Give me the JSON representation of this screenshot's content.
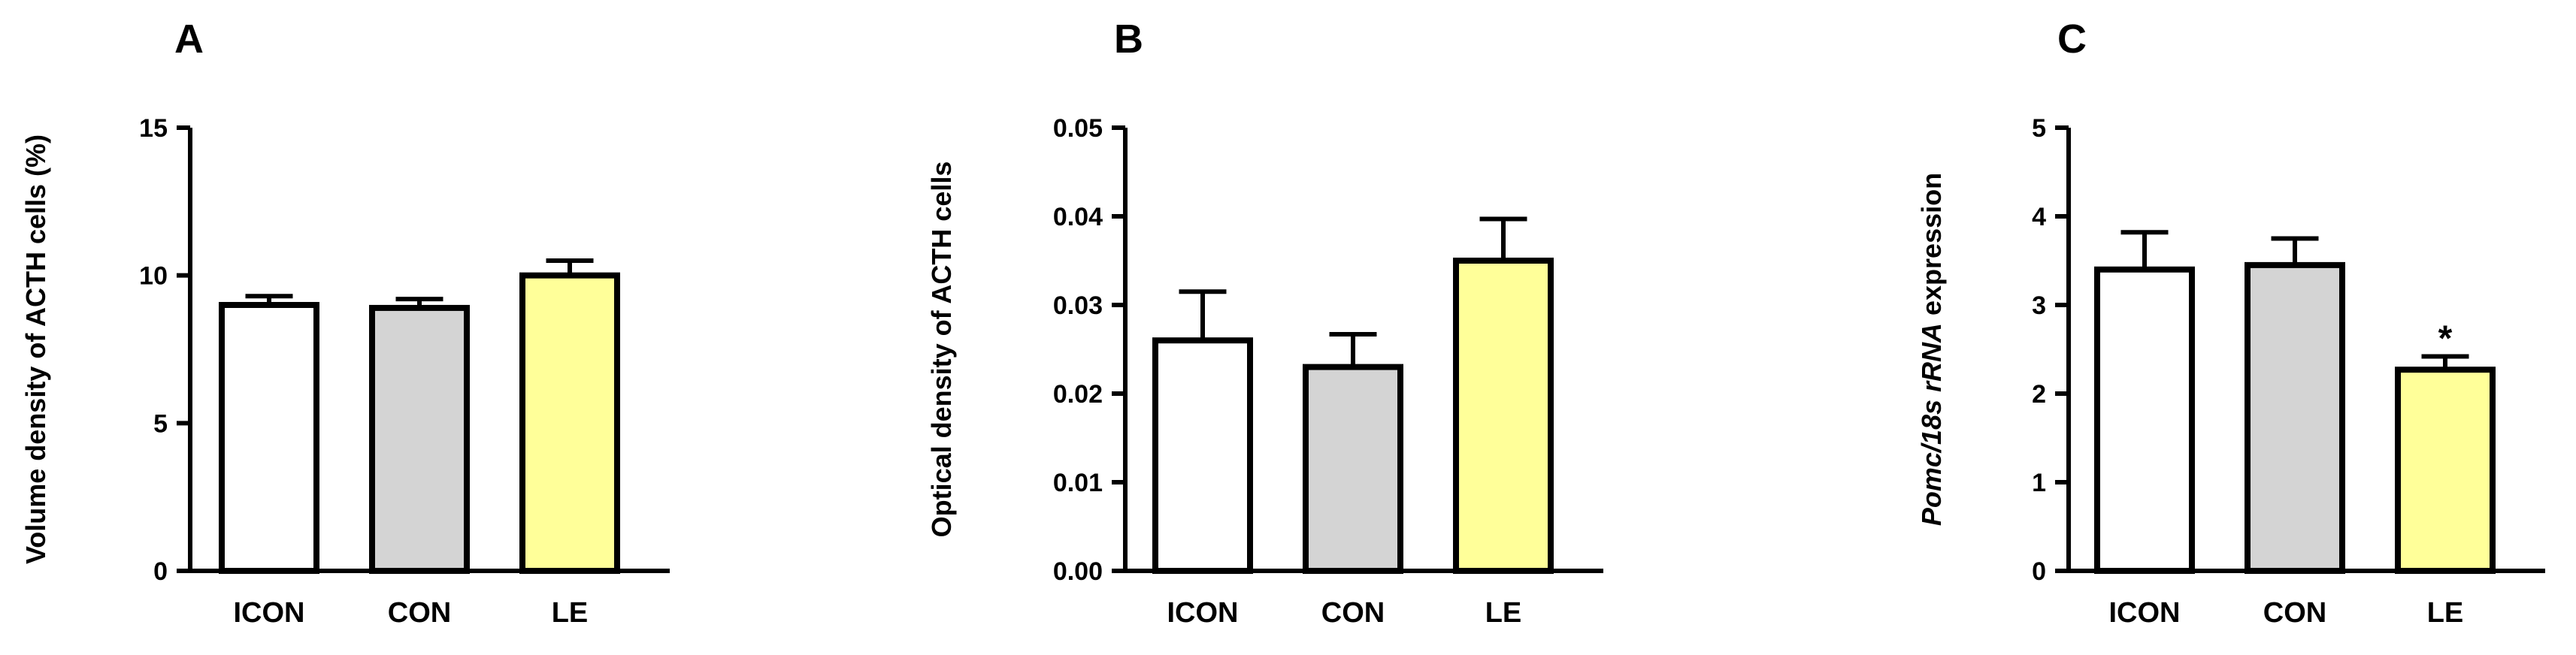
{
  "chart_data": [
    {
      "type": "bar",
      "panel_label": "A",
      "ylabel": "Volume density of ACTH cells  (%)",
      "ylabel_italic_segments": [],
      "categories": [
        "ICON",
        "CON",
        "LE"
      ],
      "values": [
        9.0,
        8.9,
        10.0
      ],
      "errors": [
        0.3,
        0.3,
        0.5
      ],
      "colors": [
        "#ffffff",
        "#d4d4d4",
        "#ffff99"
      ],
      "ylim": [
        0,
        15
      ],
      "yticks": [
        0,
        5,
        10,
        15
      ],
      "ytick_labels": [
        "0",
        "5",
        "10",
        "15"
      ],
      "annotations": [
        "",
        "",
        ""
      ],
      "grid": false
    },
    {
      "type": "bar",
      "panel_label": "B",
      "ylabel": "Optical density of ACTH cells",
      "ylabel_italic_segments": [],
      "categories": [
        "ICON",
        "CON",
        "LE"
      ],
      "values": [
        0.026,
        0.023,
        0.035
      ],
      "errors": [
        0.0055,
        0.0037,
        0.0047
      ],
      "colors": [
        "#ffffff",
        "#d4d4d4",
        "#ffff99"
      ],
      "ylim": [
        0,
        0.05
      ],
      "yticks": [
        0,
        0.01,
        0.02,
        0.03,
        0.04,
        0.05
      ],
      "ytick_labels": [
        "0.00",
        "0.01",
        "0.02",
        "0.03",
        "0.04",
        "0.05"
      ],
      "annotations": [
        "",
        "",
        ""
      ],
      "grid": false
    },
    {
      "type": "bar",
      "panel_label": "C",
      "ylabel": "Pomc/18s rRNA expression",
      "ylabel_italic_segments": [
        {
          "text": "Pomc/18s rRNA",
          "italic": true
        },
        {
          "text": " expression",
          "italic": false
        }
      ],
      "categories": [
        "ICON",
        "CON",
        "LE"
      ],
      "values": [
        3.4,
        3.45,
        2.27
      ],
      "errors": [
        0.42,
        0.3,
        0.15
      ],
      "colors": [
        "#ffffff",
        "#d4d4d4",
        "#ffff99"
      ],
      "ylim": [
        0,
        5
      ],
      "yticks": [
        0,
        1,
        2,
        3,
        4,
        5
      ],
      "ytick_labels": [
        "0",
        "1",
        "2",
        "3",
        "4",
        "5"
      ],
      "annotations": [
        "",
        "",
        "*"
      ],
      "grid": false
    }
  ]
}
